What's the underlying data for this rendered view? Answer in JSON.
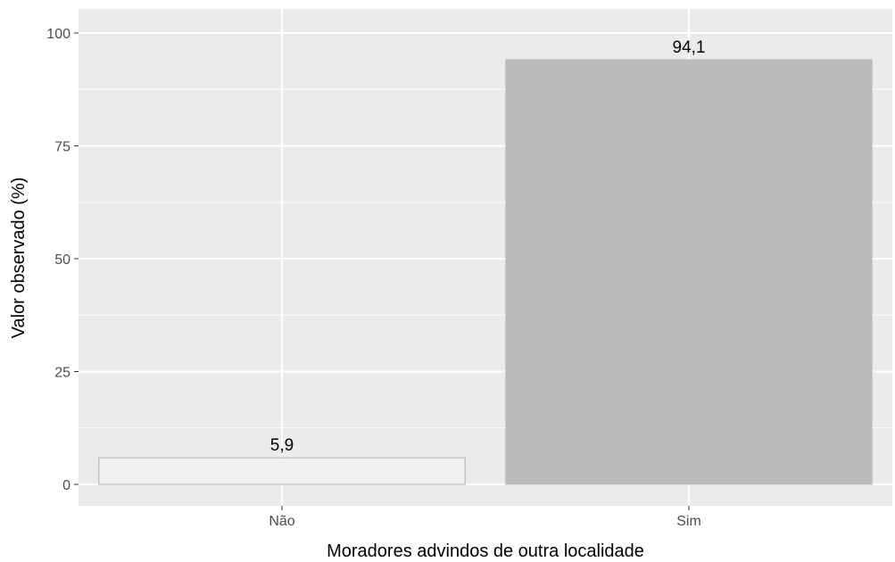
{
  "chart_data": {
    "type": "bar",
    "title": "",
    "xlabel": "Moradores advindos de outra localidade",
    "ylabel": "Valor observado (%)",
    "categories": [
      "Não",
      "Sim"
    ],
    "values": [
      5.9,
      94.1
    ],
    "data_labels": [
      "5,9",
      "94,1"
    ],
    "bar_colors": [
      "#f0f0f0",
      "#bcbcbc"
    ],
    "bar_outline_colors": [
      "#b0b0b0",
      "#bcbcbc"
    ],
    "ylim": [
      0,
      100
    ],
    "y_ticks": [
      0,
      25,
      50,
      75,
      100
    ],
    "y_tick_labels": [
      "0",
      "25",
      "50",
      "75",
      "100"
    ],
    "grid": true,
    "legend": "none",
    "panel_background": "#ebebeb",
    "grid_color": "#ffffff"
  }
}
